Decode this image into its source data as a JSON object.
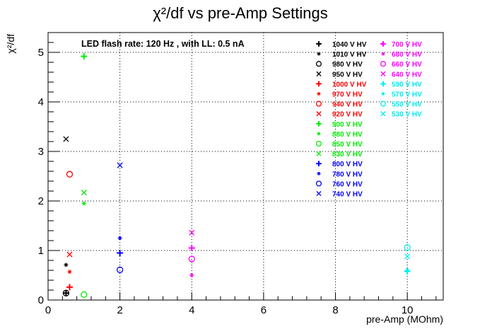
{
  "chart_data": {
    "type": "scatter",
    "title": "χ²/df vs pre-Amp Settings",
    "xlabel": "pre-Amp (MOhm)",
    "ylabel": "χ²/df",
    "annotation": "LED flash rate: 120 Hz , with LL: 0.5 nA",
    "xlim": [
      0,
      11
    ],
    "ylim": [
      0,
      5.4
    ],
    "xticks": [
      0,
      2,
      4,
      6,
      8,
      10
    ],
    "yticks": [
      0,
      1,
      2,
      3,
      4,
      5
    ],
    "grid": true,
    "legend_placement": "top-right, two columns",
    "series": [
      {
        "name": "1040 V HV",
        "color": "#000000",
        "marker": "plus",
        "points": [
          [
            0.5,
            0.14
          ]
        ]
      },
      {
        "name": "1010 V HV",
        "color": "#000000",
        "marker": "star",
        "points": [
          [
            0.5,
            0.71
          ]
        ]
      },
      {
        "name": "980 V HV",
        "color": "#000000",
        "marker": "circle",
        "points": [
          [
            0.5,
            0.14
          ]
        ]
      },
      {
        "name": "950 V HV",
        "color": "#000000",
        "marker": "cross",
        "points": [
          [
            0.5,
            3.25
          ]
        ]
      },
      {
        "name": "1000 V HV",
        "color": "#ff0000",
        "marker": "plus",
        "points": [
          [
            0.6,
            0.26
          ]
        ]
      },
      {
        "name": "970 V HV",
        "color": "#ff0000",
        "marker": "star",
        "points": [
          [
            0.6,
            0.57
          ]
        ]
      },
      {
        "name": "940 V HV",
        "color": "#ff0000",
        "marker": "circle",
        "points": [
          [
            0.6,
            2.54
          ]
        ]
      },
      {
        "name": "920 V HV",
        "color": "#ff0000",
        "marker": "cross",
        "points": [
          [
            0.6,
            0.92
          ]
        ]
      },
      {
        "name": "900 V HV",
        "color": "#00ee00",
        "marker": "plus",
        "points": [
          [
            1.0,
            4.92
          ]
        ]
      },
      {
        "name": "880 V HV",
        "color": "#00ee00",
        "marker": "star",
        "points": [
          [
            1.0,
            1.95
          ]
        ]
      },
      {
        "name": "850 V HV",
        "color": "#00ee00",
        "marker": "circle",
        "points": [
          [
            1.0,
            0.11
          ]
        ]
      },
      {
        "name": "830 V HV",
        "color": "#00ee00",
        "marker": "cross",
        "points": [
          [
            1.0,
            2.17
          ]
        ]
      },
      {
        "name": "800 V HV",
        "color": "#0000ff",
        "marker": "plus",
        "points": [
          [
            2.0,
            0.95
          ]
        ]
      },
      {
        "name": "780 V HV",
        "color": "#0000ff",
        "marker": "star",
        "points": [
          [
            2.0,
            1.25
          ]
        ]
      },
      {
        "name": "760 V HV",
        "color": "#0000ff",
        "marker": "circle",
        "points": [
          [
            2.0,
            0.61
          ]
        ]
      },
      {
        "name": "740 V HV",
        "color": "#0000ff",
        "marker": "cross",
        "points": [
          [
            2.0,
            2.72
          ]
        ]
      },
      {
        "name": "700 V HV",
        "color": "#ff00ff",
        "marker": "plus",
        "points": [
          [
            4.0,
            1.05
          ]
        ]
      },
      {
        "name": "680 V HV",
        "color": "#ff00ff",
        "marker": "star",
        "points": [
          [
            4.0,
            0.5
          ]
        ]
      },
      {
        "name": "660 V HV",
        "color": "#ff00ff",
        "marker": "circle",
        "points": [
          [
            4.0,
            0.83
          ]
        ]
      },
      {
        "name": "640 V HV",
        "color": "#ff00ff",
        "marker": "cross",
        "points": [
          [
            4.0,
            1.36
          ]
        ]
      },
      {
        "name": "590 V HV",
        "color": "#00eeee",
        "marker": "plus",
        "points": [
          [
            10.0,
            0.58
          ]
        ]
      },
      {
        "name": "570 V HV",
        "color": "#00eeee",
        "marker": "star",
        "points": [
          [
            10.0,
            0.6
          ]
        ]
      },
      {
        "name": "550 V HV",
        "color": "#00eeee",
        "marker": "circle",
        "points": [
          [
            10.0,
            1.06
          ]
        ]
      },
      {
        "name": "530 V HV",
        "color": "#00eeee",
        "marker": "cross",
        "points": [
          [
            10.0,
            0.88
          ]
        ]
      }
    ]
  }
}
